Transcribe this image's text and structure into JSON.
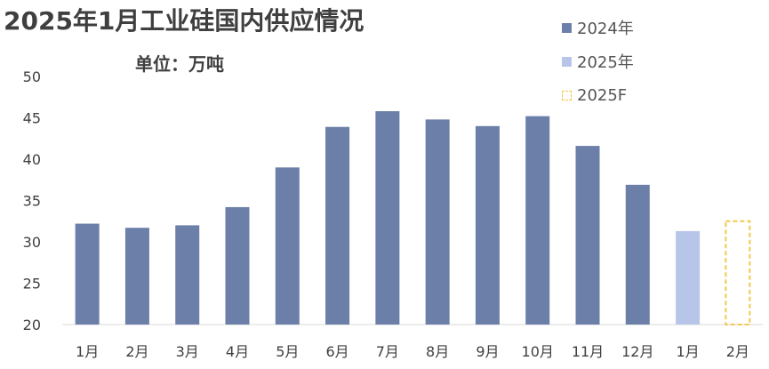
{
  "title": "2025年1月工业硅国内供应情况",
  "subtitle": "单位：万吨",
  "colors": {
    "2024": "#6b7fa8",
    "2025": "#b7c6e8",
    "2025F": "#f2c94c"
  },
  "legend": [
    {
      "label": "2024年",
      "color": "#6b7fa8",
      "style": "solid"
    },
    {
      "label": "2025年",
      "color": "#b7c6e8",
      "style": "solid"
    },
    {
      "label": "2025F",
      "color": "#f2c94c",
      "style": "dashed"
    }
  ],
  "chart_data": {
    "type": "bar",
    "title": "2025年1月工业硅国内供应情况",
    "subtitle": "单位：万吨",
    "ylim": [
      20,
      50
    ],
    "yticks": [
      20,
      25,
      30,
      35,
      40,
      45,
      50
    ],
    "grid": false,
    "legend_position": "top-right",
    "categories": [
      "1月",
      "2月",
      "3月",
      "4月",
      "5月",
      "6月",
      "7月",
      "8月",
      "9月",
      "10月",
      "11月",
      "12月",
      "1月",
      "2月"
    ],
    "series": [
      {
        "name": "2024年",
        "values": [
          32.2,
          31.7,
          32.0,
          34.2,
          39.0,
          43.9,
          45.8,
          44.8,
          44.0,
          45.2,
          41.6,
          36.9,
          null,
          null
        ]
      },
      {
        "name": "2025年",
        "values": [
          null,
          null,
          null,
          null,
          null,
          null,
          null,
          null,
          null,
          null,
          null,
          null,
          31.3,
          null
        ]
      },
      {
        "name": "2025F",
        "values": [
          null,
          null,
          null,
          null,
          null,
          null,
          null,
          null,
          null,
          null,
          null,
          null,
          null,
          32.5
        ]
      }
    ]
  }
}
